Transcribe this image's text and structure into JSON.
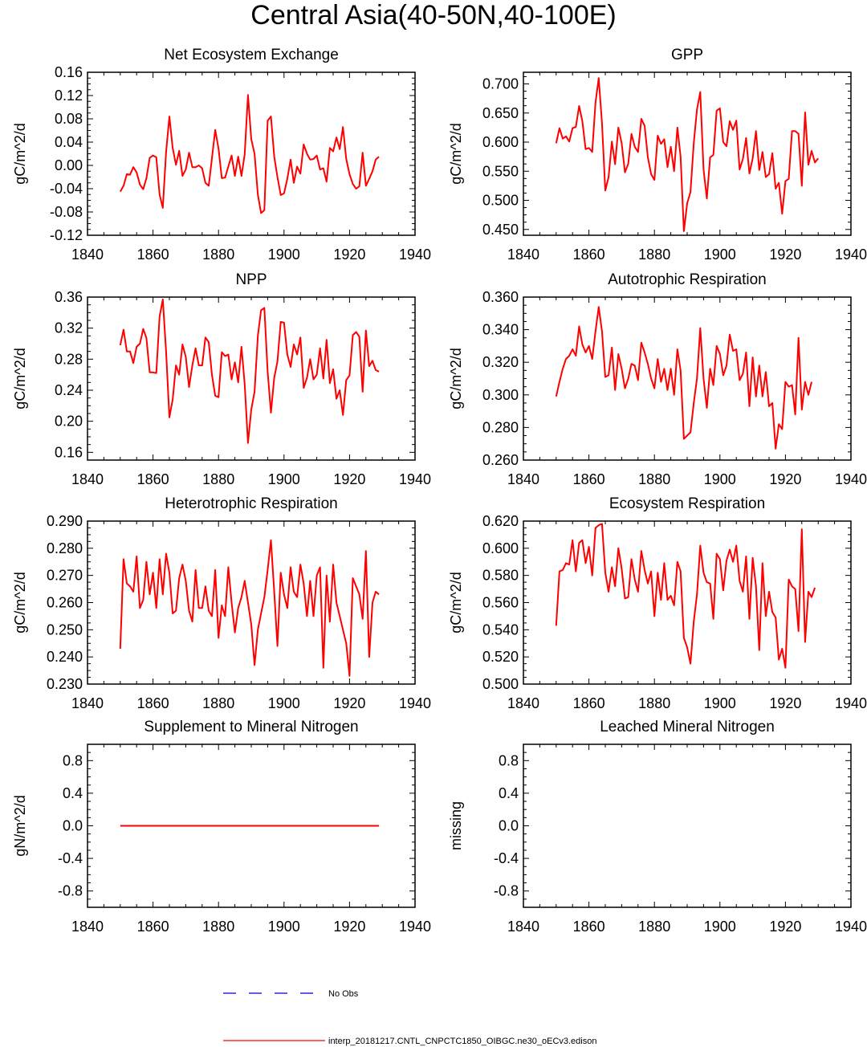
{
  "page": {
    "title": "Central Asia(40-50N,40-100E)"
  },
  "colors": {
    "model": "#ff0000",
    "obs": "#0000cc",
    "axis": "#000000"
  },
  "legend": {
    "obs_label": "No Obs",
    "model_label": "interp_20181217.CNTL_CNPCTC1850_OIBGC.ne30_oECv3.edison"
  },
  "chart_data": [
    {
      "type": "line",
      "title": "Net Ecosystem Exchange",
      "ylabel": "gC/m^2/d",
      "xlim": [
        1840,
        1940
      ],
      "xticks": [
        "1840",
        "1860",
        "1880",
        "1900",
        "1920",
        "1940"
      ],
      "ylim": [
        -0.12,
        0.16
      ],
      "yticks": [
        "-0.12",
        "-0.08",
        "-0.04",
        "0.00",
        "0.04",
        "0.08",
        "0.12",
        "0.16"
      ],
      "x_start": 1850,
      "series": [
        {
          "name": "model",
          "values": [
            -0.045,
            -0.035,
            -0.015,
            -0.016,
            -0.003,
            -0.012,
            -0.033,
            -0.041,
            -0.022,
            0.013,
            0.017,
            0.014,
            -0.05,
            -0.073,
            0.023,
            0.084,
            0.03,
            0.001,
            0.025,
            -0.018,
            -0.007,
            0.022,
            -0.003,
            -0.003,
            0.0,
            -0.005,
            -0.03,
            -0.035,
            0.012,
            0.061,
            0.029,
            -0.022,
            -0.021,
            -0.002,
            0.017,
            -0.018,
            0.015,
            -0.018,
            0.019,
            0.121,
            0.045,
            0.02,
            -0.05,
            -0.082,
            -0.077,
            0.077,
            0.084,
            0.015,
            -0.02,
            -0.051,
            -0.048,
            -0.023,
            0.01,
            -0.03,
            -0.002,
            -0.014,
            0.036,
            0.02,
            0.01,
            0.011,
            0.017,
            -0.007,
            -0.005,
            -0.028,
            0.03,
            0.024,
            0.048,
            0.028,
            0.066,
            0.011,
            -0.015,
            -0.032,
            -0.04,
            -0.036,
            0.022,
            -0.035,
            -0.023,
            -0.01,
            0.01,
            0.015
          ]
        }
      ]
    },
    {
      "type": "line",
      "title": "GPP",
      "ylabel": "gC/m^2/d",
      "xlim": [
        1840,
        1940
      ],
      "xticks": [
        "1840",
        "1860",
        "1880",
        "1900",
        "1920",
        "1940"
      ],
      "ylim": [
        0.44,
        0.72
      ],
      "yticks": [
        "0.450",
        "0.500",
        "0.550",
        "0.600",
        "0.650",
        "0.700"
      ],
      "x_start": 1850,
      "series": [
        {
          "name": "model",
          "values": [
            0.598,
            0.624,
            0.606,
            0.61,
            0.601,
            0.624,
            0.626,
            0.662,
            0.636,
            0.588,
            0.59,
            0.583,
            0.668,
            0.71,
            0.632,
            0.517,
            0.54,
            0.601,
            0.562,
            0.625,
            0.598,
            0.548,
            0.563,
            0.614,
            0.592,
            0.583,
            0.64,
            0.628,
            0.574,
            0.545,
            0.535,
            0.611,
            0.597,
            0.605,
            0.557,
            0.592,
            0.55,
            0.625,
            0.575,
            0.447,
            0.495,
            0.514,
            0.598,
            0.656,
            0.686,
            0.553,
            0.503,
            0.574,
            0.578,
            0.654,
            0.658,
            0.6,
            0.593,
            0.636,
            0.621,
            0.637,
            0.553,
            0.571,
            0.607,
            0.546,
            0.572,
            0.619,
            0.552,
            0.583,
            0.54,
            0.545,
            0.581,
            0.52,
            0.53,
            0.477,
            0.533,
            0.537,
            0.619,
            0.619,
            0.614,
            0.525,
            0.651,
            0.561,
            0.585,
            0.565,
            0.572
          ]
        }
      ]
    },
    {
      "type": "line",
      "title": "NPP",
      "ylabel": "gC/m^2/d",
      "xlim": [
        1840,
        1940
      ],
      "xticks": [
        "1840",
        "1860",
        "1880",
        "1900",
        "1920",
        "1940"
      ],
      "ylim": [
        0.15,
        0.36
      ],
      "yticks": [
        "0.16",
        "0.20",
        "0.24",
        "0.28",
        "0.32",
        "0.36"
      ],
      "x_start": 1850,
      "series": [
        {
          "name": "model",
          "values": [
            0.298,
            0.318,
            0.29,
            0.29,
            0.275,
            0.296,
            0.3,
            0.319,
            0.307,
            0.263,
            0.263,
            0.262,
            0.335,
            0.357,
            0.29,
            0.205,
            0.228,
            0.272,
            0.26,
            0.299,
            0.283,
            0.244,
            0.272,
            0.294,
            0.272,
            0.272,
            0.308,
            0.302,
            0.26,
            0.233,
            0.231,
            0.289,
            0.284,
            0.286,
            0.254,
            0.276,
            0.25,
            0.296,
            0.248,
            0.172,
            0.215,
            0.238,
            0.31,
            0.343,
            0.346,
            0.264,
            0.211,
            0.256,
            0.277,
            0.328,
            0.327,
            0.286,
            0.27,
            0.299,
            0.286,
            0.308,
            0.243,
            0.256,
            0.28,
            0.254,
            0.26,
            0.294,
            0.255,
            0.305,
            0.249,
            0.267,
            0.229,
            0.24,
            0.208,
            0.253,
            0.259,
            0.311,
            0.315,
            0.309,
            0.238,
            0.317,
            0.271,
            0.278,
            0.266,
            0.264
          ]
        }
      ]
    },
    {
      "type": "line",
      "title": "Autotrophic Respiration",
      "ylabel": "gC/m^2/d",
      "xlim": [
        1840,
        1940
      ],
      "xticks": [
        "1840",
        "1860",
        "1880",
        "1900",
        "1920",
        "1940"
      ],
      "ylim": [
        0.26,
        0.36
      ],
      "yticks": [
        "0.260",
        "0.280",
        "0.300",
        "0.320",
        "0.340",
        "0.360"
      ],
      "x_start": 1850,
      "series": [
        {
          "name": "model",
          "values": [
            0.299,
            0.308,
            0.316,
            0.322,
            0.324,
            0.328,
            0.324,
            0.342,
            0.331,
            0.326,
            0.33,
            0.322,
            0.339,
            0.354,
            0.339,
            0.311,
            0.312,
            0.329,
            0.303,
            0.325,
            0.316,
            0.304,
            0.31,
            0.319,
            0.318,
            0.309,
            0.332,
            0.326,
            0.319,
            0.31,
            0.304,
            0.322,
            0.308,
            0.316,
            0.303,
            0.316,
            0.3,
            0.328,
            0.315,
            0.273,
            0.275,
            0.277,
            0.295,
            0.31,
            0.341,
            0.31,
            0.292,
            0.316,
            0.306,
            0.33,
            0.325,
            0.312,
            0.318,
            0.337,
            0.327,
            0.328,
            0.309,
            0.313,
            0.326,
            0.293,
            0.323,
            0.299,
            0.318,
            0.299,
            0.314,
            0.293,
            0.295,
            0.267,
            0.282,
            0.279,
            0.308,
            0.305,
            0.306,
            0.288,
            0.335,
            0.291,
            0.308,
            0.3,
            0.308
          ]
        }
      ]
    },
    {
      "type": "line",
      "title": "Heterotrophic Respiration",
      "ylabel": "gC/m^2/d",
      "xlim": [
        1840,
        1940
      ],
      "xticks": [
        "1840",
        "1860",
        "1880",
        "1900",
        "1920",
        "1940"
      ],
      "ylim": [
        0.23,
        0.29
      ],
      "yticks": [
        "0.230",
        "0.240",
        "0.250",
        "0.260",
        "0.270",
        "0.280",
        "0.290"
      ],
      "x_start": 1850,
      "series": [
        {
          "name": "model",
          "values": [
            0.243,
            0.276,
            0.267,
            0.266,
            0.264,
            0.277,
            0.258,
            0.261,
            0.275,
            0.263,
            0.271,
            0.258,
            0.276,
            0.263,
            0.278,
            0.271,
            0.256,
            0.257,
            0.269,
            0.274,
            0.268,
            0.257,
            0.253,
            0.272,
            0.258,
            0.258,
            0.266,
            0.257,
            0.255,
            0.272,
            0.247,
            0.259,
            0.255,
            0.273,
            0.26,
            0.249,
            0.258,
            0.262,
            0.268,
            0.26,
            0.252,
            0.237,
            0.25,
            0.256,
            0.262,
            0.272,
            0.283,
            0.264,
            0.244,
            0.271,
            0.263,
            0.258,
            0.273,
            0.264,
            0.262,
            0.274,
            0.267,
            0.255,
            0.268,
            0.255,
            0.27,
            0.273,
            0.236,
            0.27,
            0.253,
            0.274,
            0.26,
            0.255,
            0.25,
            0.245,
            0.233,
            0.269,
            0.266,
            0.263,
            0.254,
            0.279,
            0.24,
            0.26,
            0.264,
            0.263
          ]
        }
      ]
    },
    {
      "type": "line",
      "title": "Ecosystem Respiration",
      "ylabel": "gC/m^2/d",
      "xlim": [
        1840,
        1940
      ],
      "xticks": [
        "1840",
        "1860",
        "1880",
        "1900",
        "1920",
        "1940"
      ],
      "ylim": [
        0.5,
        0.62
      ],
      "yticks": [
        "0.500",
        "0.520",
        "0.540",
        "0.560",
        "0.580",
        "0.600",
        "0.620"
      ],
      "x_start": 1850,
      "series": [
        {
          "name": "model",
          "values": [
            0.543,
            0.583,
            0.584,
            0.589,
            0.588,
            0.606,
            0.583,
            0.604,
            0.606,
            0.589,
            0.601,
            0.58,
            0.615,
            0.617,
            0.618,
            0.582,
            0.568,
            0.586,
            0.572,
            0.6,
            0.585,
            0.563,
            0.564,
            0.592,
            0.577,
            0.568,
            0.598,
            0.584,
            0.574,
            0.583,
            0.55,
            0.582,
            0.562,
            0.589,
            0.562,
            0.565,
            0.558,
            0.59,
            0.583,
            0.534,
            0.527,
            0.515,
            0.546,
            0.566,
            0.602,
            0.582,
            0.575,
            0.574,
            0.548,
            0.596,
            0.592,
            0.569,
            0.591,
            0.599,
            0.59,
            0.602,
            0.576,
            0.568,
            0.594,
            0.548,
            0.593,
            0.572,
            0.525,
            0.589,
            0.55,
            0.568,
            0.553,
            0.549,
            0.518,
            0.526,
            0.512,
            0.577,
            0.572,
            0.57,
            0.539,
            0.614,
            0.531,
            0.568,
            0.564,
            0.571
          ]
        }
      ]
    },
    {
      "type": "line",
      "title": "Supplement to Mineral Nitrogen",
      "ylabel": "gN/m^2/d",
      "xlim": [
        1840,
        1940
      ],
      "xticks": [
        "1840",
        "1860",
        "1880",
        "1900",
        "1920",
        "1940"
      ],
      "ylim": [
        -1.0,
        1.0
      ],
      "yticks": [
        "-0.8",
        "-0.4",
        "0.0",
        "0.4",
        "0.8"
      ],
      "x_start": 1850,
      "series": [
        {
          "name": "model",
          "values": [
            0,
            0,
            0,
            0,
            0,
            0,
            0,
            0,
            0,
            0,
            0,
            0,
            0,
            0,
            0,
            0,
            0,
            0,
            0,
            0,
            0,
            0,
            0,
            0,
            0,
            0,
            0,
            0,
            0,
            0,
            0,
            0,
            0,
            0,
            0,
            0,
            0,
            0,
            0,
            0,
            0,
            0,
            0,
            0,
            0,
            0,
            0,
            0,
            0,
            0,
            0,
            0,
            0,
            0,
            0,
            0,
            0,
            0,
            0,
            0,
            0,
            0,
            0,
            0,
            0,
            0,
            0,
            0,
            0,
            0,
            0,
            0,
            0,
            0,
            0,
            0,
            0,
            0,
            0,
            0
          ]
        }
      ]
    },
    {
      "type": "line",
      "title": "Leached Mineral Nitrogen",
      "ylabel": "missing",
      "xlim": [
        1840,
        1940
      ],
      "xticks": [
        "1840",
        "1860",
        "1880",
        "1900",
        "1920",
        "1940"
      ],
      "ylim": [
        -1.0,
        1.0
      ],
      "yticks": [
        "-0.8",
        "-0.4",
        "0.0",
        "0.4",
        "0.8"
      ],
      "x_start": 1850,
      "series": []
    }
  ]
}
